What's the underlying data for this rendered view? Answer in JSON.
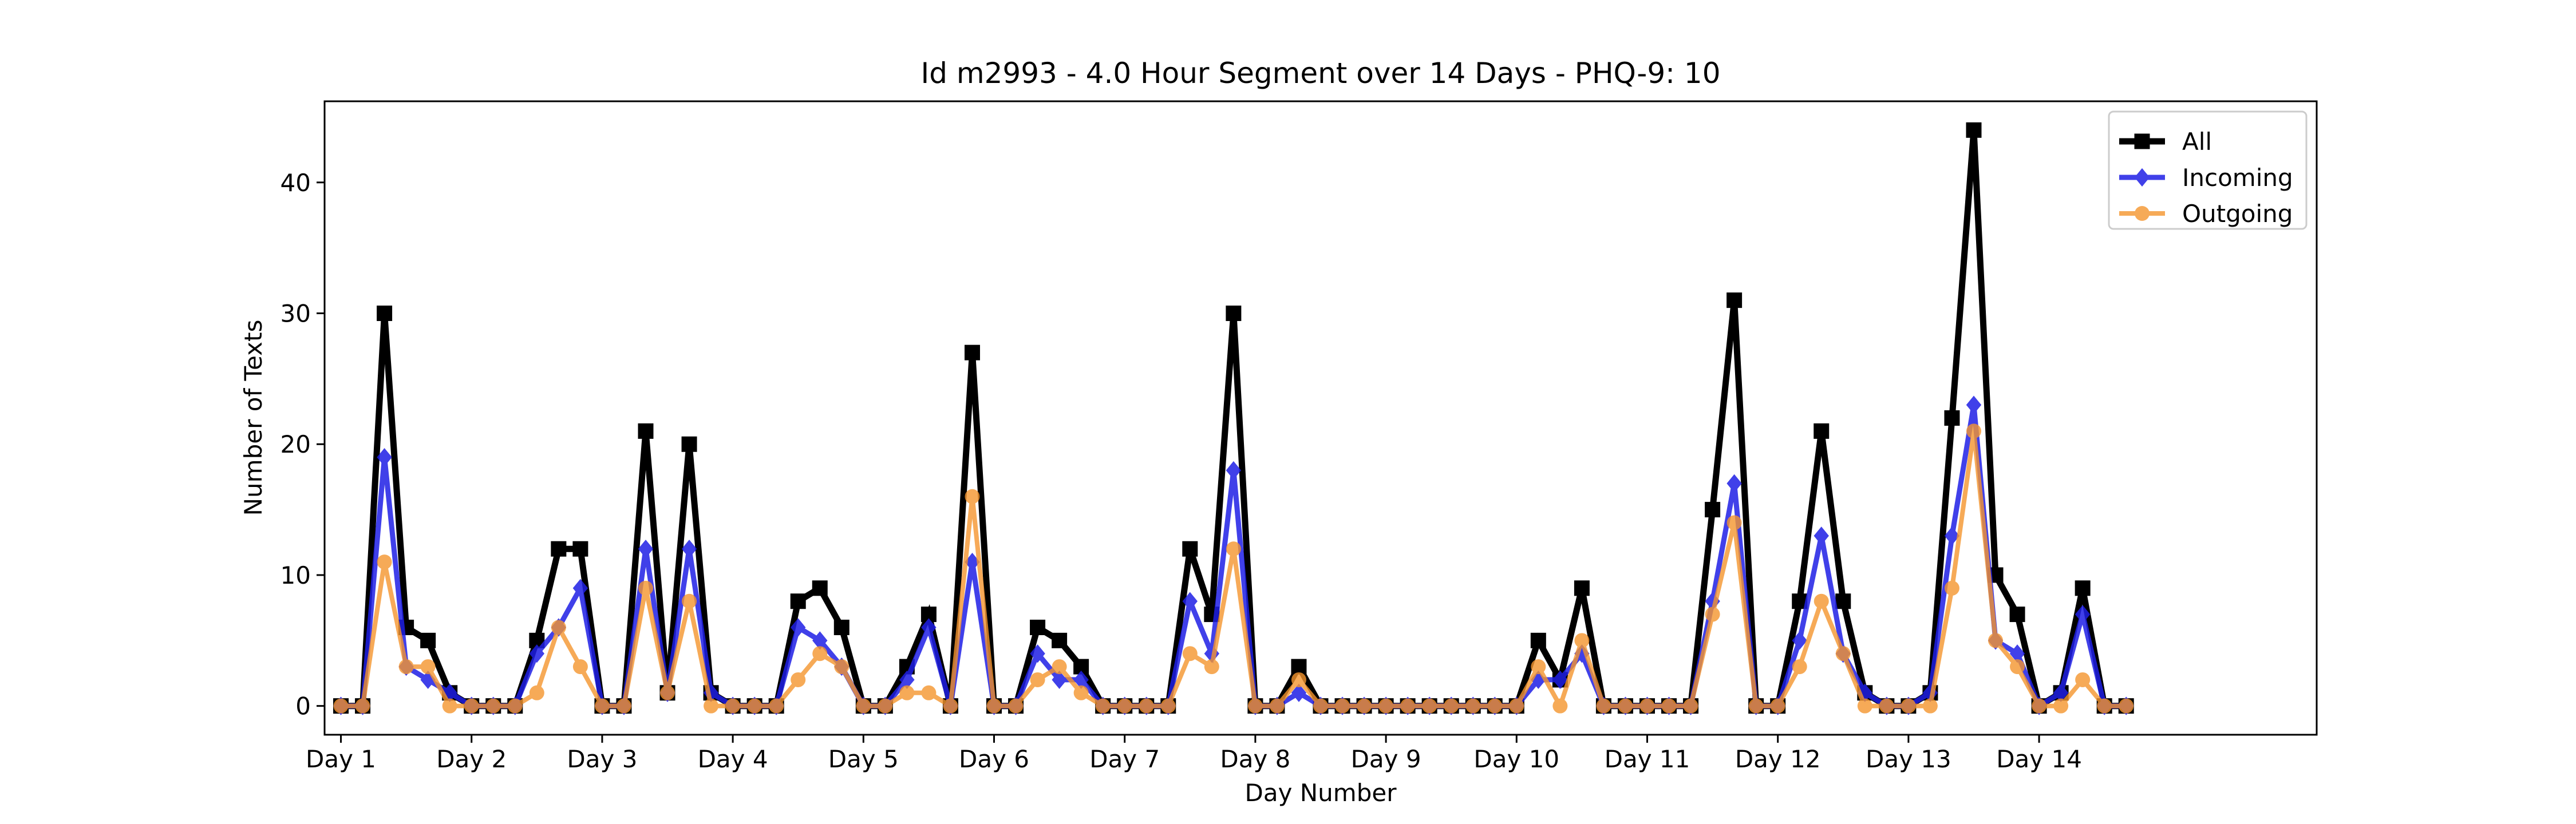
{
  "chart_data": {
    "type": "line",
    "title": "Id m2993 - 4.0 Hour Segment over 14 Days - PHQ-9: 10",
    "xlabel": "Day Number",
    "ylabel": "Number of Texts",
    "xlim": [
      -0.75,
      90.75
    ],
    "ylim": [
      -2.2,
      46.2
    ],
    "yticks": [
      0,
      10,
      20,
      30,
      40
    ],
    "xticks": [
      {
        "pos": 0,
        "label": "Day 1"
      },
      {
        "pos": 6,
        "label": "Day 2"
      },
      {
        "pos": 12,
        "label": "Day 3"
      },
      {
        "pos": 18,
        "label": "Day 4"
      },
      {
        "pos": 24,
        "label": "Day 5"
      },
      {
        "pos": 30,
        "label": "Day 6"
      },
      {
        "pos": 36,
        "label": "Day 7"
      },
      {
        "pos": 42,
        "label": "Day 8"
      },
      {
        "pos": 48,
        "label": "Day 9"
      },
      {
        "pos": 54,
        "label": "Day 10"
      },
      {
        "pos": 60,
        "label": "Day 11"
      },
      {
        "pos": 66,
        "label": "Day 12"
      },
      {
        "pos": 72,
        "label": "Day 13"
      },
      {
        "pos": 78,
        "label": "Day 14"
      }
    ],
    "grid": false,
    "legend_position": "top-right",
    "series": [
      {
        "name": "All",
        "color": "#000000",
        "marker": "square",
        "values": [
          0,
          0,
          30,
          6,
          5,
          1,
          0,
          0,
          0,
          5,
          12,
          12,
          0,
          0,
          21,
          1,
          20,
          1,
          0,
          0,
          0,
          8,
          9,
          6,
          0,
          0,
          3,
          7,
          0,
          27,
          0,
          0,
          6,
          5,
          3,
          0,
          0,
          0,
          0,
          12,
          7,
          30,
          0,
          0,
          3,
          0,
          0,
          0,
          0,
          0,
          0,
          0,
          0,
          0,
          0,
          5,
          2,
          9,
          0,
          0,
          0,
          0,
          0,
          15,
          31,
          0,
          0,
          8,
          21,
          8,
          1,
          0,
          0,
          1,
          22,
          44,
          10,
          7,
          0,
          1,
          9,
          0,
          0
        ]
      },
      {
        "name": "Incoming",
        "color": "#1f1fe6",
        "marker": "diamond",
        "values": [
          0,
          0,
          19,
          3,
          2,
          1,
          0,
          0,
          0,
          4,
          6,
          9,
          0,
          0,
          12,
          1,
          12,
          1,
          0,
          0,
          0,
          6,
          5,
          3,
          0,
          0,
          2,
          6,
          0,
          11,
          0,
          0,
          4,
          2,
          2,
          0,
          0,
          0,
          0,
          8,
          4,
          18,
          0,
          0,
          1,
          0,
          0,
          0,
          0,
          0,
          0,
          0,
          0,
          0,
          0,
          2,
          2,
          4,
          0,
          0,
          0,
          0,
          0,
          8,
          17,
          0,
          0,
          5,
          13,
          4,
          1,
          0,
          0,
          1,
          13,
          23,
          5,
          4,
          0,
          1,
          7,
          0,
          0
        ]
      },
      {
        "name": "Outgoing",
        "color": "#f5952e",
        "marker": "circle",
        "values": [
          0,
          0,
          11,
          3,
          3,
          0,
          0,
          0,
          0,
          1,
          6,
          3,
          0,
          0,
          9,
          1,
          8,
          0,
          0,
          0,
          0,
          2,
          4,
          3,
          0,
          0,
          1,
          1,
          0,
          16,
          0,
          0,
          2,
          3,
          1,
          0,
          0,
          0,
          0,
          4,
          3,
          12,
          0,
          0,
          2,
          0,
          0,
          0,
          0,
          0,
          0,
          0,
          0,
          0,
          0,
          3,
          0,
          5,
          0,
          0,
          0,
          0,
          0,
          7,
          14,
          0,
          0,
          3,
          8,
          4,
          0,
          0,
          0,
          0,
          9,
          21,
          5,
          3,
          0,
          0,
          2,
          0,
          0
        ]
      }
    ]
  }
}
